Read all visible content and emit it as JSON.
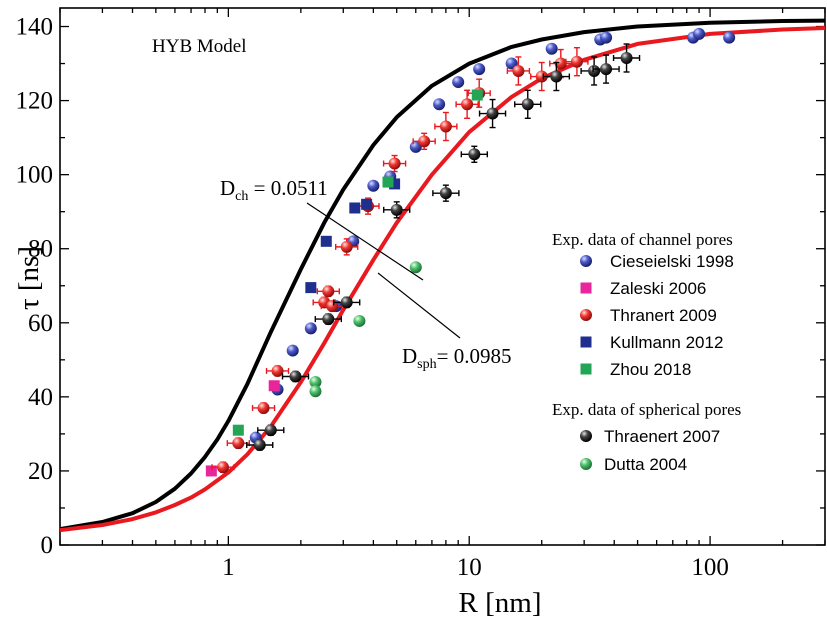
{
  "chart_data": {
    "type": "scatter",
    "title": "",
    "annotation_box": "HYB Model",
    "xlabel": "R [nm]",
    "ylabel": "τ [ns]",
    "xscale": "log",
    "xlim": [
      0.2,
      300
    ],
    "ylim": [
      0,
      145
    ],
    "x_ticks": [
      1,
      10,
      100
    ],
    "x_tick_labels": [
      "1",
      "10",
      "100"
    ],
    "y_ticks": [
      0,
      20,
      40,
      60,
      80,
      100,
      120,
      140
    ],
    "y_tick_labels": [
      "0",
      "20",
      "40",
      "60",
      "80",
      "100",
      "120",
      "140"
    ],
    "grid": false,
    "legend_position": "right",
    "legend_groups": [
      {
        "heading": "Exp. data of channel pores",
        "series": [
          0,
          1,
          2,
          3,
          4
        ]
      },
      {
        "heading": "Exp. data of spherical pores",
        "series": [
          5,
          6
        ]
      }
    ],
    "curves": [
      {
        "label_main": "D",
        "label_sub": "ch",
        "label_rest": " = 0.0511",
        "D": 0.0511,
        "color": "#000000",
        "points": [
          [
            0.2,
            4.3
          ],
          [
            0.3,
            6.2
          ],
          [
            0.4,
            8.6
          ],
          [
            0.5,
            11.6
          ],
          [
            0.6,
            15.2
          ],
          [
            0.7,
            19.3
          ],
          [
            0.8,
            23.8
          ],
          [
            0.9,
            28.5
          ],
          [
            1.0,
            33.5
          ],
          [
            1.2,
            43.5
          ],
          [
            1.5,
            57.5
          ],
          [
            2.0,
            74.5
          ],
          [
            2.5,
            87
          ],
          [
            3.0,
            96
          ],
          [
            4.0,
            108
          ],
          [
            5.0,
            115.5
          ],
          [
            7.0,
            124
          ],
          [
            10,
            130
          ],
          [
            15,
            134.5
          ],
          [
            20,
            136.5
          ],
          [
            30,
            138.5
          ],
          [
            50,
            140
          ],
          [
            100,
            141
          ],
          [
            200,
            141.5
          ],
          [
            300,
            141.6
          ]
        ]
      },
      {
        "label_main": "D",
        "label_sub": "sph",
        "label_rest": "= 0.0985",
        "D": 0.0985,
        "color": "#e8191f",
        "points": [
          [
            0.2,
            4.0
          ],
          [
            0.3,
            5.4
          ],
          [
            0.4,
            7.0
          ],
          [
            0.5,
            8.8
          ],
          [
            0.6,
            10.8
          ],
          [
            0.7,
            12.8
          ],
          [
            0.8,
            15.0
          ],
          [
            1.0,
            19.6
          ],
          [
            1.2,
            24.5
          ],
          [
            1.5,
            32
          ],
          [
            2.0,
            44
          ],
          [
            2.5,
            54.5
          ],
          [
            3.0,
            63.5
          ],
          [
            4.0,
            77
          ],
          [
            5.0,
            87
          ],
          [
            7.0,
            100
          ],
          [
            10,
            111.5
          ],
          [
            15,
            121
          ],
          [
            20,
            126
          ],
          [
            30,
            131
          ],
          [
            50,
            135.3
          ],
          [
            100,
            138
          ],
          [
            200,
            139.2
          ],
          [
            300,
            139.6
          ]
        ]
      }
    ],
    "series": [
      {
        "name": "Cieseielski 1998",
        "marker": "circle",
        "color": "#2e3a9e",
        "points": [
          [
            1.3,
            29
          ],
          [
            1.6,
            42
          ],
          [
            1.85,
            52.5
          ],
          [
            2.2,
            58.5
          ],
          [
            2.8,
            64.5
          ],
          [
            3.3,
            82
          ],
          [
            4.0,
            97
          ],
          [
            4.7,
            99.5
          ],
          [
            6.0,
            107.5
          ],
          [
            7.5,
            119
          ],
          [
            9.0,
            125
          ],
          [
            11,
            128.5
          ],
          [
            15,
            130
          ],
          [
            22,
            134
          ],
          [
            35,
            136.5
          ],
          [
            37,
            137
          ],
          [
            85,
            137
          ],
          [
            90,
            138
          ],
          [
            120,
            137
          ]
        ]
      },
      {
        "name": "Zaleski 2006",
        "marker": "square",
        "color": "#e8259a",
        "points": [
          [
            0.85,
            20
          ],
          [
            1.55,
            43
          ]
        ]
      },
      {
        "name": "Thranert 2009",
        "marker": "circle",
        "color": "#e8191f",
        "points": [
          [
            0.95,
            21
          ],
          [
            1.1,
            27.5
          ],
          [
            1.4,
            37
          ],
          [
            1.6,
            47
          ],
          [
            2.5,
            65.5
          ],
          [
            2.7,
            64.5
          ],
          [
            2.6,
            68.5
          ],
          [
            3.1,
            80.5
          ],
          [
            3.8,
            91.5
          ],
          [
            4.9,
            103
          ],
          [
            6.5,
            109
          ],
          [
            8,
            113
          ],
          [
            9.8,
            119
          ],
          [
            11,
            122
          ],
          [
            16,
            128
          ],
          [
            20,
            126.5
          ],
          [
            24,
            130
          ],
          [
            28,
            130.5
          ]
        ]
      },
      {
        "name": "Kullmann 2012",
        "marker": "square",
        "color": "#1f2f8e",
        "points": [
          [
            2.55,
            82
          ],
          [
            2.2,
            69.5
          ],
          [
            3.35,
            91
          ],
          [
            3.75,
            92
          ],
          [
            4.9,
            97.5
          ]
        ]
      },
      {
        "name": "Zhou 2018",
        "marker": "square",
        "color": "#22a655",
        "points": [
          [
            1.1,
            31
          ],
          [
            4.6,
            98
          ],
          [
            10.8,
            121.5
          ]
        ]
      },
      {
        "name": "Thraenert 2007",
        "marker": "circle",
        "color": "#000000",
        "points": [
          [
            1.35,
            27
          ],
          [
            1.5,
            31
          ],
          [
            1.9,
            45.5
          ],
          [
            2.6,
            61
          ],
          [
            3.1,
            65.5
          ],
          [
            5,
            90.5
          ],
          [
            8,
            95
          ],
          [
            10.5,
            105.5
          ],
          [
            12.5,
            116.5
          ],
          [
            17.5,
            119
          ],
          [
            23,
            126.5
          ],
          [
            33,
            128
          ],
          [
            37,
            128.5
          ],
          [
            45,
            131.5
          ]
        ]
      },
      {
        "name": "Dutta 2004",
        "marker": "circle",
        "color": "#4cb86a",
        "points": [
          [
            2.3,
            44
          ],
          [
            2.3,
            41.5
          ],
          [
            3.5,
            60.5
          ],
          [
            6.0,
            75
          ]
        ]
      }
    ]
  }
}
